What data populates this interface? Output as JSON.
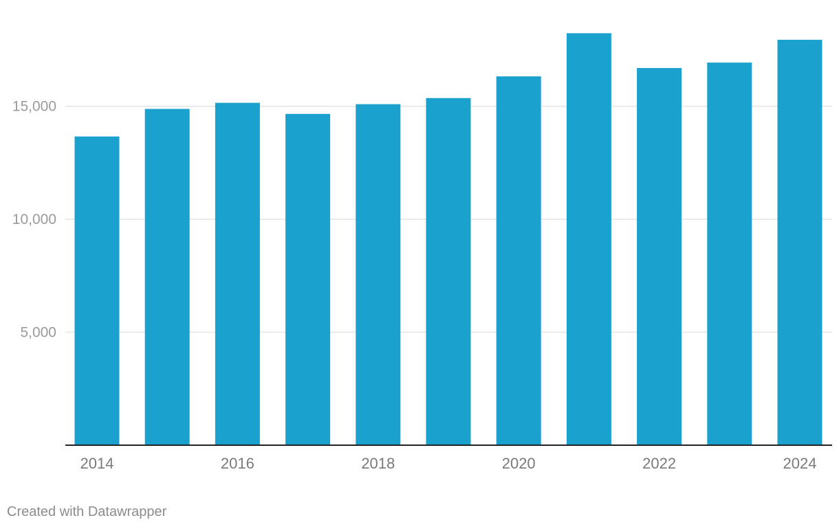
{
  "chart_data": {
    "type": "bar",
    "title": "",
    "xlabel": "",
    "ylabel": "",
    "categories": [
      "2014",
      "2015",
      "2016",
      "2017",
      "2018",
      "2019",
      "2020",
      "2021",
      "2022",
      "2023",
      "2024"
    ],
    "x_tick_labels": [
      "2014",
      "2016",
      "2018",
      "2020",
      "2022",
      "2024"
    ],
    "values": [
      13660,
      14880,
      15150,
      14660,
      15090,
      15360,
      16320,
      18230,
      16690,
      16930,
      17940
    ],
    "y_ticks": [
      5000,
      10000,
      15000
    ],
    "y_tick_labels": [
      "5,000",
      "10,000",
      "15,000"
    ],
    "ylim": [
      0,
      19700
    ],
    "grid": true,
    "bar_color": "#1aa1cd",
    "grid_color": "#e3e3e3",
    "axis_color": "#222222",
    "label_color": "#9a9a9a"
  },
  "footer": {
    "credit": "Created with Datawrapper"
  }
}
